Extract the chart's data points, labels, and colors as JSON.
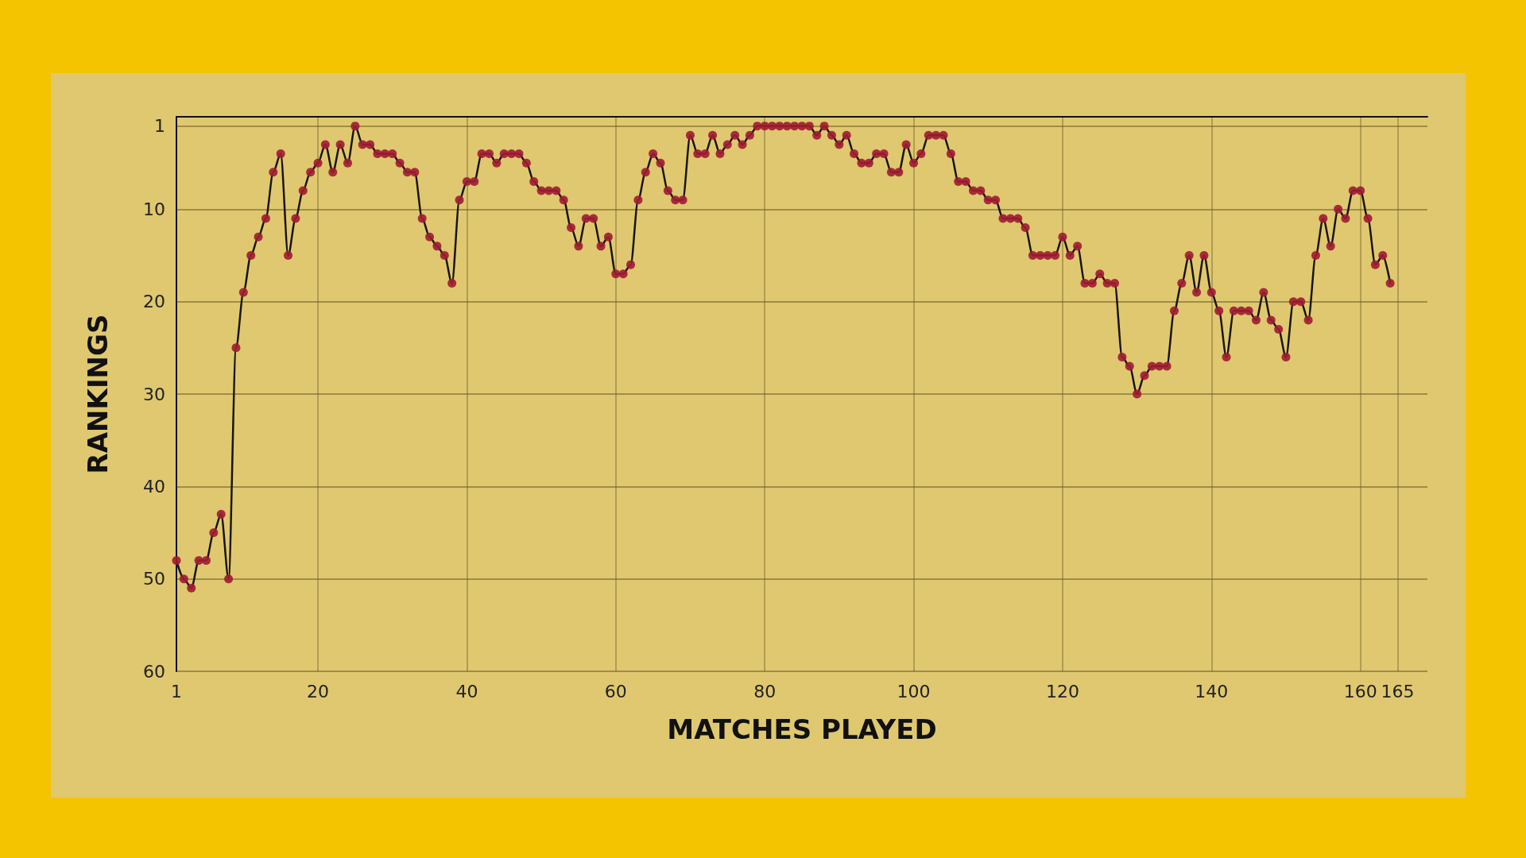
{
  "chart_data": {
    "type": "line",
    "xlabel": "MATCHES PLAYED",
    "ylabel": "RANKINGS",
    "x": [
      1,
      2,
      3,
      4,
      5,
      6,
      7,
      8,
      9,
      10,
      11,
      12,
      13,
      14,
      15,
      16,
      17,
      18,
      19,
      20,
      21,
      22,
      23,
      24,
      25,
      26,
      27,
      28,
      29,
      30,
      31,
      32,
      33,
      34,
      35,
      36,
      37,
      38,
      39,
      40,
      41,
      42,
      43,
      44,
      45,
      46,
      47,
      48,
      49,
      50,
      51,
      52,
      53,
      54,
      55,
      56,
      57,
      58,
      59,
      60,
      61,
      62,
      63,
      64,
      65,
      66,
      67,
      68,
      69,
      70,
      71,
      72,
      73,
      74,
      75,
      76,
      77,
      78,
      79,
      80,
      81,
      82,
      83,
      84,
      85,
      86,
      87,
      88,
      89,
      90,
      91,
      92,
      93,
      94,
      95,
      96,
      97,
      98,
      99,
      100,
      101,
      102,
      103,
      104,
      105,
      106,
      107,
      108,
      109,
      110,
      111,
      112,
      113,
      114,
      115,
      116,
      117,
      118,
      119,
      120,
      121,
      122,
      123,
      124,
      125,
      126,
      127,
      128,
      129,
      130,
      131,
      132,
      133,
      134,
      135,
      136,
      137,
      138,
      139,
      140,
      141,
      142,
      143,
      144,
      145,
      146,
      147,
      148,
      149,
      150,
      151,
      152,
      153,
      154,
      155,
      156,
      157,
      158,
      159,
      160,
      161,
      162,
      163,
      164
    ],
    "series": [
      {
        "color": "#9e1b32",
        "values": [
          48,
          50,
          51,
          48,
          48,
          45,
          43,
          50,
          25,
          19,
          15,
          13,
          11,
          6,
          4,
          15,
          11,
          8,
          6,
          5,
          3,
          6,
          3,
          5,
          1,
          3,
          3,
          4,
          4,
          4,
          5,
          6,
          6,
          11,
          13,
          14,
          15,
          18,
          9,
          7,
          7,
          4,
          4,
          5,
          4,
          4,
          4,
          5,
          7,
          8,
          8,
          8,
          9,
          12,
          14,
          11,
          11,
          14,
          13,
          17,
          17,
          16,
          9,
          6,
          4,
          5,
          8,
          9,
          9,
          2,
          4,
          4,
          2,
          4,
          3,
          2,
          3,
          2,
          1,
          1,
          1,
          1,
          1,
          1,
          1,
          1,
          2,
          1,
          2,
          3,
          2,
          4,
          5,
          5,
          4,
          4,
          6,
          6,
          3,
          5,
          4,
          2,
          2,
          2,
          4,
          7,
          7,
          8,
          8,
          9,
          9,
          11,
          11,
          11,
          12,
          15,
          15,
          15,
          15,
          13,
          15,
          14,
          18,
          18,
          17,
          18,
          18,
          26,
          27,
          30,
          28,
          27,
          27,
          27,
          21,
          18,
          15,
          19,
          15,
          19,
          21,
          26,
          21,
          21,
          21,
          22,
          19,
          22,
          23,
          26,
          20,
          20,
          22,
          15,
          11,
          14,
          10,
          11,
          8,
          8,
          11,
          16,
          15,
          18
        ]
      }
    ],
    "xlim": [
      1,
      169
    ],
    "xticks": [
      1,
      20,
      40,
      60,
      80,
      100,
      120,
      140,
      160,
      165
    ],
    "ylim": [
      60,
      0
    ],
    "yticks": [
      1,
      10,
      20,
      30,
      40,
      50,
      60
    ],
    "grid": true,
    "marker": "circle",
    "line_style": "solid"
  }
}
